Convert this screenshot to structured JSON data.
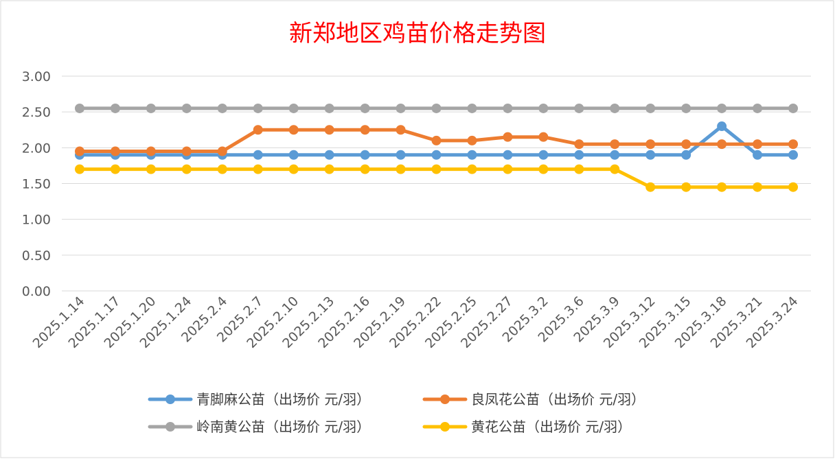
{
  "chart_data": {
    "type": "line",
    "title": "新郑地区鸡苗价格走势图",
    "xlabel": "",
    "ylabel": "",
    "ylim": [
      0,
      3
    ],
    "yticks": [
      "0.00",
      "0.50",
      "1.00",
      "1.50",
      "2.00",
      "2.50",
      "3.00"
    ],
    "grid": true,
    "legend_position": "bottom",
    "categories": [
      "2025.1.14",
      "2025.1.17",
      "2025.1.20",
      "2025.1.24",
      "2025.2.4",
      "2025.2.7",
      "2025.2.10",
      "2025.2.13",
      "2025.2.16",
      "2025.2.19",
      "2025.2.22",
      "2025.2.25",
      "2025.2.27",
      "2025.3.2",
      "2025.3.6",
      "2025.3.9",
      "2025.3.12",
      "2025.3.15",
      "2025.3.18",
      "2025.3.21",
      "2025.3.24"
    ],
    "series": [
      {
        "name": "青脚麻公苗（出场价 元/羽）",
        "color": "#5b9bd5",
        "values": [
          1.9,
          1.9,
          1.9,
          1.9,
          1.9,
          1.9,
          1.9,
          1.9,
          1.9,
          1.9,
          1.9,
          1.9,
          1.9,
          1.9,
          1.9,
          1.9,
          1.9,
          1.9,
          2.3,
          1.9,
          1.9
        ]
      },
      {
        "name": "良凤花公苗（出场价 元/羽）",
        "color": "#ed7d31",
        "values": [
          1.95,
          1.95,
          1.95,
          1.95,
          1.95,
          2.25,
          2.25,
          2.25,
          2.25,
          2.25,
          2.1,
          2.1,
          2.15,
          2.15,
          2.05,
          2.05,
          2.05,
          2.05,
          2.05,
          2.05,
          2.05
        ]
      },
      {
        "name": "岭南黄公苗（出场价 元/羽）",
        "color": "#a5a5a5",
        "values": [
          2.55,
          2.55,
          2.55,
          2.55,
          2.55,
          2.55,
          2.55,
          2.55,
          2.55,
          2.55,
          2.55,
          2.55,
          2.55,
          2.55,
          2.55,
          2.55,
          2.55,
          2.55,
          2.55,
          2.55,
          2.55
        ]
      },
      {
        "name": "黄花公苗（出场价 元/羽）",
        "color": "#ffc000",
        "values": [
          1.7,
          1.7,
          1.7,
          1.7,
          1.7,
          1.7,
          1.7,
          1.7,
          1.7,
          1.7,
          1.7,
          1.7,
          1.7,
          1.7,
          1.7,
          1.7,
          1.45,
          1.45,
          1.45,
          1.45,
          1.45
        ]
      }
    ]
  }
}
